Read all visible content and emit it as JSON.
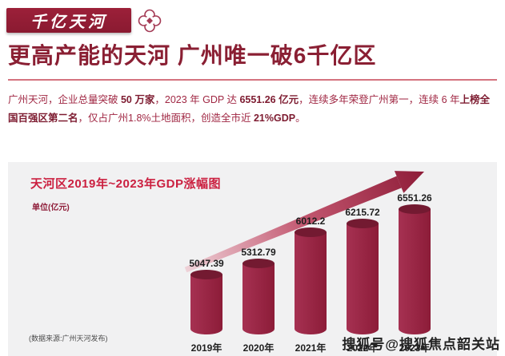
{
  "banner": {
    "label": "千亿天河"
  },
  "header": {
    "title": "更高产能的天河 广州唯一破6千亿区"
  },
  "intro": {
    "segments": [
      {
        "text": "广州天河，企业总量突破 ",
        "bold": false
      },
      {
        "text": "50 万家",
        "bold": true
      },
      {
        "text": "，2023 年 GDP 达 ",
        "bold": false
      },
      {
        "text": "6551.26 亿元",
        "bold": true
      },
      {
        "text": "，连续多年荣登广州第一，连续 6 年",
        "bold": false
      },
      {
        "text": "上榜全国百强区第二名",
        "bold": true
      },
      {
        "text": "，仅占广州1.8%土地面积，创造全市近 ",
        "bold": false
      },
      {
        "text": "21%GDP",
        "bold": true
      },
      {
        "text": "。",
        "bold": false
      }
    ]
  },
  "chart": {
    "title": "天河区2019年~2023年GDP涨幅图",
    "unit_label": "单位(亿元)",
    "source": "(数据来源:广州天河发布)"
  },
  "chart_data": {
    "type": "bar",
    "categories": [
      "2019年",
      "2020年",
      "2021年",
      "2022年",
      "2023年"
    ],
    "values": [
      5047.39,
      5312.79,
      6012.2,
      6215.72,
      6551.26
    ],
    "title": "天河区2019年~2023年GDP涨幅图",
    "xlabel": "",
    "ylabel": "单位(亿元)",
    "ylim": [
      0,
      7000
    ],
    "grid": false,
    "legend": false,
    "annotations": [
      "上升趋势箭头"
    ]
  },
  "watermark": {
    "text": "搜狐号@搜狐焦点韶关站"
  },
  "colors": {
    "accent": "#8e1c38",
    "bar": "#8c1c38",
    "bar_top": "#731a31",
    "chart_title_red": "#cb2040",
    "headline_red": "#8a1f33",
    "panel_bg": "#f1f1f2"
  }
}
